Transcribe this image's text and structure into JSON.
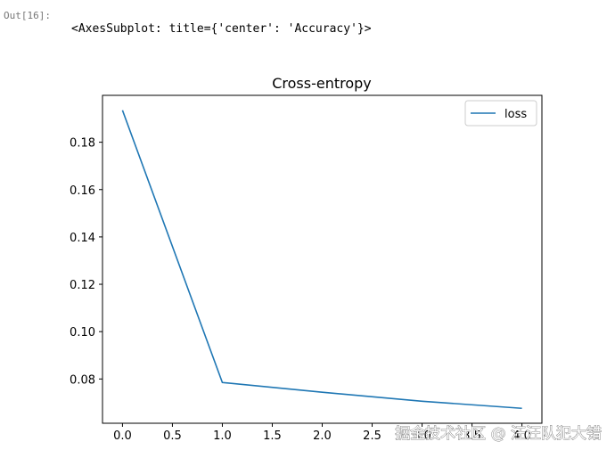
{
  "prompt": "Out[16]:",
  "output_text": "<AxesSubplot: title={'center': 'Accuracy'}>",
  "watermark": "掘金技术社区 @ 汪汪队犯大错",
  "chart_data": {
    "type": "line",
    "title": "Cross-entropy",
    "x": [
      0,
      1,
      2,
      3,
      4
    ],
    "series": [
      {
        "name": "loss",
        "color": "#1f77b4",
        "values": [
          0.1935,
          0.0785,
          0.0744,
          0.0706,
          0.0676
        ]
      }
    ],
    "xlim": [
      -0.2,
      4.2
    ],
    "xticks": [
      {
        "value": 0,
        "label": "0.0"
      },
      {
        "value": 0.5,
        "label": "0.5"
      },
      {
        "value": 1,
        "label": "1.0"
      },
      {
        "value": 1.5,
        "label": "1.5"
      },
      {
        "value": 2,
        "label": "2.0"
      },
      {
        "value": 2.5,
        "label": "2.5"
      },
      {
        "value": 3,
        "label": "3.0"
      },
      {
        "value": 3.5,
        "label": "3.5"
      },
      {
        "value": 4,
        "label": "4.0"
      }
    ],
    "ylim": [
      0.0613,
      0.1998
    ],
    "yticks": [
      0.08,
      {
        "value": 0.1,
        "label": "0.10"
      },
      0.12,
      0.14,
      0.16,
      0.18
    ],
    "grid": false,
    "legend": "upper right"
  }
}
